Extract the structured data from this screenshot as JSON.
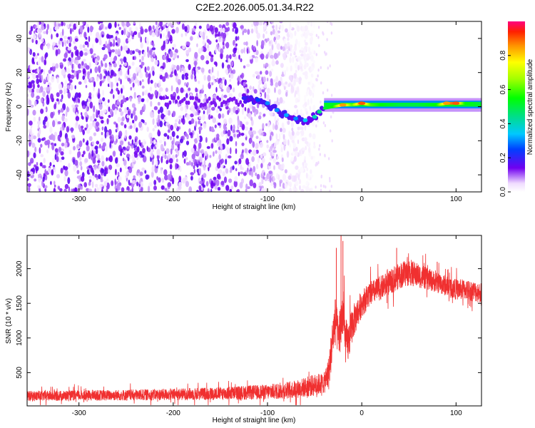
{
  "title": "C2E2.2026.005.01.34.R22",
  "chart_data": [
    {
      "type": "heatmap",
      "name": "spectrogram",
      "xlabel": "Height of straight line (km)",
      "ylabel": "Frequency (Hz)",
      "xlim": [
        -355,
        127
      ],
      "ylim": [
        -50,
        50
      ],
      "xticks": [
        -300,
        -200,
        -100,
        0,
        100
      ],
      "yticks": [
        -40,
        -20,
        0,
        20,
        40
      ],
      "colorbar": {
        "label": "Normalized spectral amplitude",
        "range": [
          0,
          1
        ],
        "ticks": [
          0.0,
          0.2,
          0.4,
          0.6,
          0.8
        ],
        "tick_labels": [
          "0.0",
          "0.2",
          "0.4",
          "0.6",
          "0.8"
        ]
      },
      "noise_region": {
        "x_range": [
          -355,
          -50
        ],
        "amplitude_range": [
          0.0,
          0.12
        ]
      },
      "signal_track": [
        {
          "x": -125,
          "freq": 5,
          "amp": 0.2
        },
        {
          "x": -110,
          "freq": 4,
          "amp": 0.25
        },
        {
          "x": -100,
          "freq": 2,
          "amp": 0.3
        },
        {
          "x": -90,
          "freq": -2,
          "amp": 0.3
        },
        {
          "x": -80,
          "freq": -5,
          "amp": 0.32
        },
        {
          "x": -70,
          "freq": -7,
          "amp": 0.3
        },
        {
          "x": -60,
          "freq": -8,
          "amp": 0.35
        },
        {
          "x": -50,
          "freq": -6,
          "amp": 0.4
        },
        {
          "x": -45,
          "freq": -3,
          "amp": 0.45
        },
        {
          "x": -40,
          "freq": -1,
          "amp": 0.5
        },
        {
          "x": -30,
          "freq": 0,
          "amp": 0.55
        },
        {
          "x": -20,
          "freq": 1,
          "amp": 0.85
        },
        {
          "x": -10,
          "freq": 1,
          "amp": 0.6
        },
        {
          "x": 0,
          "freq": 2,
          "amp": 0.9
        },
        {
          "x": 10,
          "freq": 1,
          "amp": 0.6
        },
        {
          "x": 20,
          "freq": 1,
          "amp": 0.55
        },
        {
          "x": 40,
          "freq": 1,
          "amp": 0.5
        },
        {
          "x": 60,
          "freq": 1,
          "amp": 0.5
        },
        {
          "x": 80,
          "freq": 1,
          "amp": 0.55
        },
        {
          "x": 90,
          "freq": 2,
          "amp": 0.85
        },
        {
          "x": 100,
          "freq": 2,
          "amp": 0.9
        },
        {
          "x": 110,
          "freq": 2,
          "amp": 0.55
        },
        {
          "x": 127,
          "freq": 2,
          "amp": 0.5
        }
      ]
    },
    {
      "type": "line",
      "name": "snr",
      "xlabel": "Height of straight line (km)",
      "ylabel": "SNR (10 * v/v)",
      "xlim": [
        -355,
        127
      ],
      "ylim": [
        20,
        2480
      ],
      "xticks": [
        -300,
        -200,
        -100,
        0,
        100
      ],
      "yticks": [
        500,
        1000,
        1500,
        2000
      ],
      "color": "#f03030",
      "series": [
        {
          "name": "SNR",
          "envelope": {
            "x": [
              -355,
              -300,
              -250,
              -200,
              -150,
              -100,
              -70,
              -50,
              -40,
              -35,
              -30,
              -28,
              -25,
              -22,
              -20,
              -18,
              -15,
              -10,
              0,
              10,
              20,
              30,
              40,
              50,
              60,
              70,
              80,
              90,
              100,
              110,
              127
            ],
            "mean": [
              160,
              170,
              175,
              185,
              200,
              220,
              260,
              320,
              350,
              500,
              1100,
              1300,
              1000,
              1200,
              1400,
              1000,
              900,
              1200,
              1500,
              1650,
              1720,
              1800,
              1900,
              1950,
              1900,
              1850,
              1800,
              1750,
              1700,
              1700,
              1650
            ],
            "spread": [
              150,
              150,
              160,
              170,
              190,
              220,
              260,
              320,
              300,
              500,
              650,
              600,
              650,
              750,
              800,
              700,
              600,
              500,
              400,
              350,
              350,
              350,
              380,
              400,
              350,
              320,
              300,
              300,
              300,
              300,
              300
            ]
          },
          "spikes": [
            {
              "x": -27,
              "y": 2300
            },
            {
              "x": -22,
              "y": 2480
            },
            {
              "x": -20,
              "y": 2400
            },
            {
              "x": 37,
              "y": 2300
            },
            {
              "x": 80,
              "y": 2100
            }
          ]
        }
      ]
    }
  ]
}
